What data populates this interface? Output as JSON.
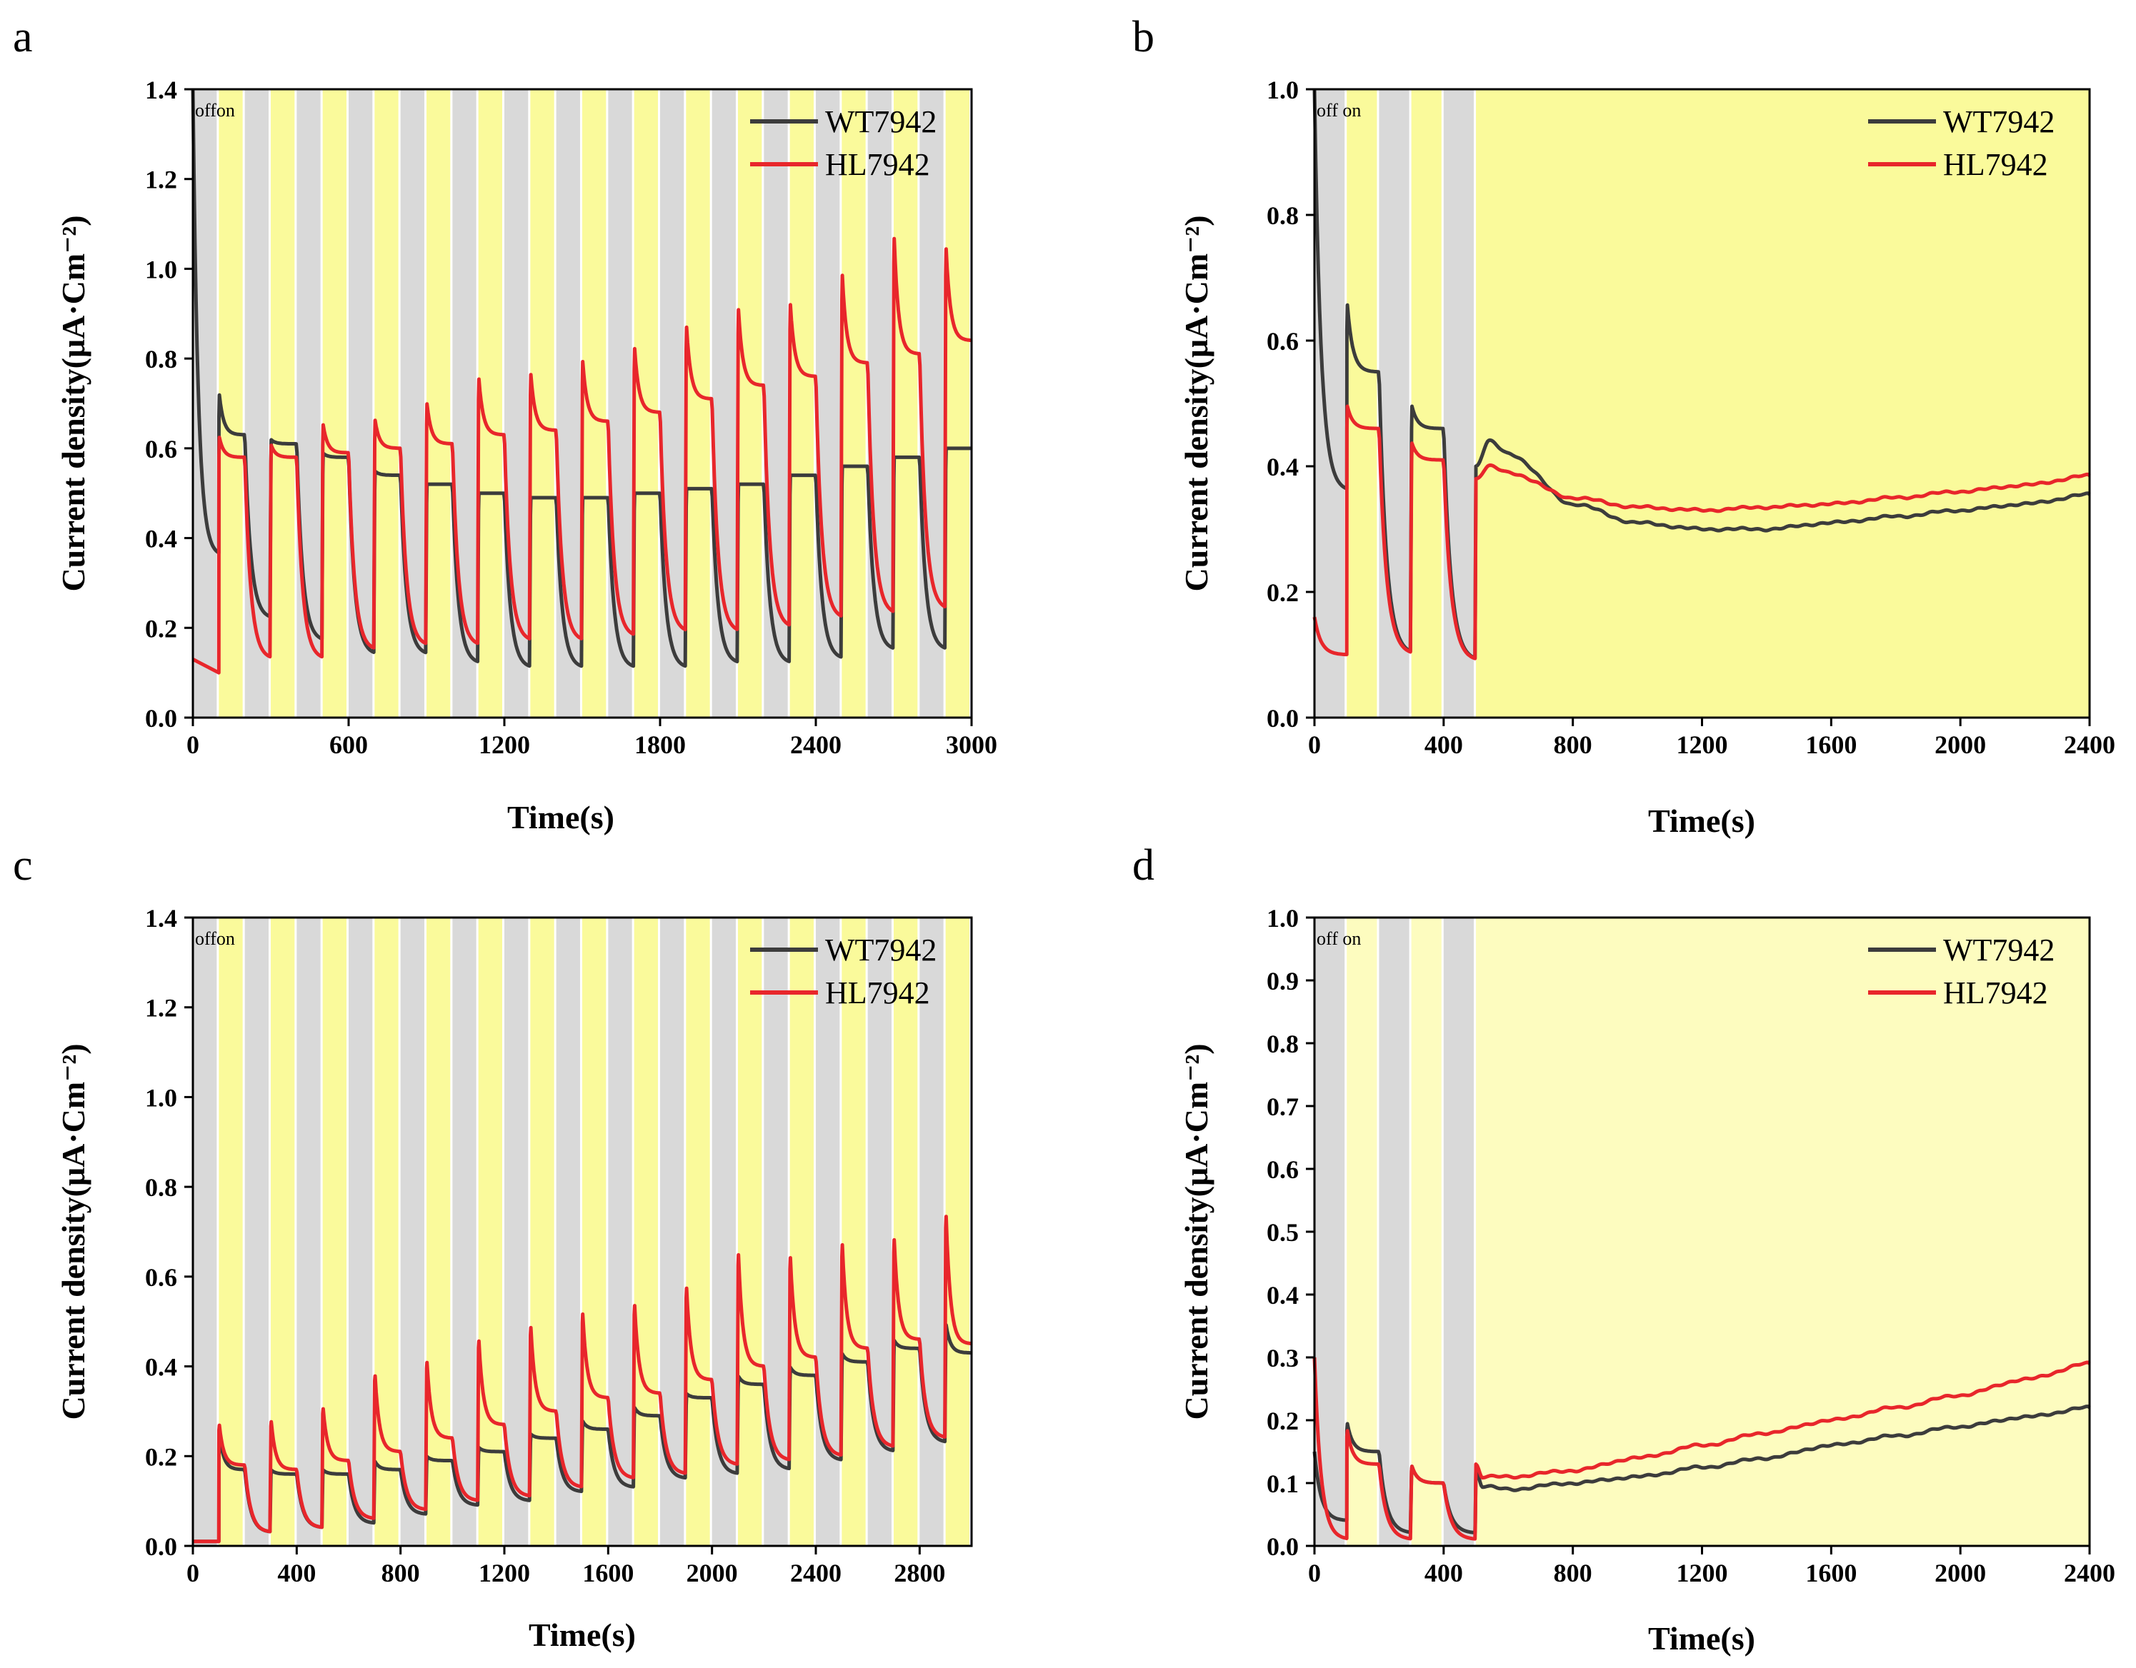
{
  "figure": {
    "legend": [
      {
        "name": "WT7942",
        "color": "#3c3c3c"
      },
      {
        "name": "HL7942",
        "color": "#e8262b"
      }
    ],
    "colors": {
      "dark_band": "#d9d9d9",
      "light_band": "#fafa9b",
      "light_band_pale": "#fdfcbf",
      "wt": "#3c3c3c",
      "hl": "#e8262b"
    }
  },
  "chart_data": [
    {
      "panel": "a",
      "type": "line",
      "xlabel": "Time(s)",
      "ylabel": "Current density(μA·Cm⁻²)",
      "xlim": [
        0,
        3000
      ],
      "ylim": [
        0,
        1.4
      ],
      "xticks": [
        "0",
        "600",
        "1200",
        "1800",
        "2400",
        "3000"
      ],
      "yticks": [
        "0.0",
        "0.2",
        "0.4",
        "0.6",
        "0.8",
        "1.0",
        "1.2",
        "1.4"
      ],
      "annotation": [
        "off",
        "on"
      ],
      "light_pattern": {
        "period": 200,
        "off": 100,
        "on_start": 100,
        "sustained_from": null
      },
      "series": [
        {
          "name": "WT7942",
          "initial": 1.4,
          "cycles": [
            {
              "peak": 0.73,
              "end_on": 0.63,
              "end_off": 0.22
            },
            {
              "peak": 0.62,
              "end_on": 0.61,
              "end_off": 0.17
            },
            {
              "peak": 0.59,
              "end_on": 0.58,
              "end_off": 0.14
            },
            {
              "peak": 0.55,
              "end_on": 0.54,
              "end_off": 0.14
            },
            {
              "peak": 0.52,
              "end_on": 0.52,
              "end_off": 0.12
            },
            {
              "peak": 0.5,
              "end_on": 0.5,
              "end_off": 0.11
            },
            {
              "peak": 0.49,
              "end_on": 0.49,
              "end_off": 0.11
            },
            {
              "peak": 0.49,
              "end_on": 0.49,
              "end_off": 0.11
            },
            {
              "peak": 0.5,
              "end_on": 0.5,
              "end_off": 0.11
            },
            {
              "peak": 0.51,
              "end_on": 0.51,
              "end_off": 0.12
            },
            {
              "peak": 0.52,
              "end_on": 0.52,
              "end_off": 0.12
            },
            {
              "peak": 0.54,
              "end_on": 0.54,
              "end_off": 0.13
            },
            {
              "peak": 0.56,
              "end_on": 0.56,
              "end_off": 0.15
            },
            {
              "peak": 0.58,
              "end_on": 0.58,
              "end_off": 0.15
            },
            {
              "peak": 0.6,
              "end_on": 0.6,
              "end_off": 0.15
            }
          ]
        },
        {
          "name": "HL7942",
          "initial": 0.13,
          "first_off_end": 0.1,
          "cycles": [
            {
              "peak": 0.63,
              "end_on": 0.58,
              "end_off": 0.13
            },
            {
              "peak": 0.61,
              "end_on": 0.58,
              "end_off": 0.13
            },
            {
              "peak": 0.66,
              "end_on": 0.59,
              "end_off": 0.15
            },
            {
              "peak": 0.67,
              "end_on": 0.6,
              "end_off": 0.16
            },
            {
              "peak": 0.71,
              "end_on": 0.61,
              "end_off": 0.16
            },
            {
              "peak": 0.77,
              "end_on": 0.63,
              "end_off": 0.17
            },
            {
              "peak": 0.78,
              "end_on": 0.64,
              "end_off": 0.17
            },
            {
              "peak": 0.81,
              "end_on": 0.66,
              "end_off": 0.18
            },
            {
              "peak": 0.84,
              "end_on": 0.68,
              "end_off": 0.19
            },
            {
              "peak": 0.89,
              "end_on": 0.71,
              "end_off": 0.19
            },
            {
              "peak": 0.93,
              "end_on": 0.74,
              "end_off": 0.2
            },
            {
              "peak": 0.94,
              "end_on": 0.76,
              "end_off": 0.22
            },
            {
              "peak": 1.01,
              "end_on": 0.79,
              "end_off": 0.23
            },
            {
              "peak": 1.1,
              "end_on": 0.81,
              "end_off": 0.24
            },
            {
              "peak": 1.07,
              "end_on": 0.84,
              "end_off": 0.25
            }
          ]
        }
      ]
    },
    {
      "panel": "b",
      "type": "line",
      "xlabel": "Time(s)",
      "ylabel": "Current density(μA·Cm⁻²)",
      "xlim": [
        0,
        2400
      ],
      "ylim": [
        0,
        1.0
      ],
      "xticks": [
        "0",
        "400",
        "800",
        "1200",
        "1600",
        "2000",
        "2400"
      ],
      "yticks": [
        "0.0",
        "0.2",
        "0.4",
        "0.6",
        "0.8",
        "1.0"
      ],
      "annotation": [
        "off",
        "on"
      ],
      "light_pattern": {
        "period": 200,
        "off": 100,
        "on_start": 100,
        "sustained_from": 500
      },
      "series": [
        {
          "name": "WT7942",
          "initial": 1.0,
          "cycles": [
            {
              "peak": 0.67,
              "end_on": 0.55,
              "end_off": 0.1
            },
            {
              "peak": 0.5,
              "end_on": 0.46,
              "end_off": 0.09
            }
          ],
          "sustained": [
            [
              500,
              0.4
            ],
            [
              540,
              0.44
            ],
            [
              600,
              0.42
            ],
            [
              800,
              0.34
            ],
            [
              1000,
              0.31
            ],
            [
              1200,
              0.3
            ],
            [
              1400,
              0.3
            ],
            [
              1600,
              0.31
            ],
            [
              1800,
              0.32
            ],
            [
              2000,
              0.33
            ],
            [
              2200,
              0.34
            ],
            [
              2400,
              0.355
            ]
          ]
        },
        {
          "name": "HL7942",
          "initial": 0.16,
          "first_off_end": 0.1,
          "cycles": [
            {
              "peak": 0.5,
              "end_on": 0.46,
              "end_off": 0.1
            },
            {
              "peak": 0.44,
              "end_on": 0.41,
              "end_off": 0.09
            }
          ],
          "sustained": [
            [
              500,
              0.38
            ],
            [
              540,
              0.4
            ],
            [
              600,
              0.39
            ],
            [
              800,
              0.35
            ],
            [
              1000,
              0.335
            ],
            [
              1200,
              0.33
            ],
            [
              1400,
              0.335
            ],
            [
              1600,
              0.34
            ],
            [
              1800,
              0.35
            ],
            [
              2000,
              0.36
            ],
            [
              2200,
              0.37
            ],
            [
              2400,
              0.385
            ]
          ]
        }
      ]
    },
    {
      "panel": "c",
      "type": "line",
      "xlabel": "Time(s)",
      "ylabel": "Current density(μA·Cm⁻²)",
      "xlim": [
        0,
        3000
      ],
      "ylim": [
        0,
        1.4
      ],
      "xticks": [
        "0",
        "400",
        "800",
        "1200",
        "1600",
        "2000",
        "2400",
        "2800"
      ],
      "yticks": [
        "0.0",
        "0.2",
        "0.4",
        "0.6",
        "0.8",
        "1.0",
        "1.2",
        "1.4"
      ],
      "annotation": [
        "off",
        "on"
      ],
      "light_pattern": {
        "period": 200,
        "off": 100,
        "on_start": 100,
        "sustained_from": null
      },
      "series": [
        {
          "name": "WT7942",
          "initial": 0.01,
          "first_off_end": 0.01,
          "cycles": [
            {
              "peak": 0.26,
              "end_on": 0.17,
              "end_off": 0.03
            },
            {
              "peak": 0.17,
              "end_on": 0.16,
              "end_off": 0.04
            },
            {
              "peak": 0.17,
              "end_on": 0.16,
              "end_off": 0.05
            },
            {
              "peak": 0.19,
              "end_on": 0.17,
              "end_off": 0.07
            },
            {
              "peak": 0.2,
              "end_on": 0.19,
              "end_off": 0.09
            },
            {
              "peak": 0.22,
              "end_on": 0.21,
              "end_off": 0.1
            },
            {
              "peak": 0.25,
              "end_on": 0.24,
              "end_off": 0.12
            },
            {
              "peak": 0.28,
              "end_on": 0.26,
              "end_off": 0.13
            },
            {
              "peak": 0.31,
              "end_on": 0.29,
              "end_off": 0.15
            },
            {
              "peak": 0.34,
              "end_on": 0.33,
              "end_off": 0.16
            },
            {
              "peak": 0.38,
              "end_on": 0.36,
              "end_off": 0.17
            },
            {
              "peak": 0.4,
              "end_on": 0.38,
              "end_off": 0.19
            },
            {
              "peak": 0.43,
              "end_on": 0.41,
              "end_off": 0.21
            },
            {
              "peak": 0.46,
              "end_on": 0.44,
              "end_off": 0.23
            },
            {
              "peak": 0.5,
              "end_on": 0.43,
              "end_off": 0.24
            }
          ]
        },
        {
          "name": "HL7942",
          "initial": 0.01,
          "first_off_end": 0.01,
          "cycles": [
            {
              "peak": 0.28,
              "end_on": 0.18,
              "end_off": 0.03
            },
            {
              "peak": 0.29,
              "end_on": 0.17,
              "end_off": 0.04
            },
            {
              "peak": 0.32,
              "end_on": 0.19,
              "end_off": 0.06
            },
            {
              "peak": 0.4,
              "end_on": 0.21,
              "end_off": 0.08
            },
            {
              "peak": 0.43,
              "end_on": 0.24,
              "end_off": 0.1
            },
            {
              "peak": 0.48,
              "end_on": 0.27,
              "end_off": 0.11
            },
            {
              "peak": 0.51,
              "end_on": 0.3,
              "end_off": 0.13
            },
            {
              "peak": 0.54,
              "end_on": 0.33,
              "end_off": 0.15
            },
            {
              "peak": 0.56,
              "end_on": 0.34,
              "end_off": 0.16
            },
            {
              "peak": 0.6,
              "end_on": 0.37,
              "end_off": 0.18
            },
            {
              "peak": 0.68,
              "end_on": 0.4,
              "end_off": 0.19
            },
            {
              "peak": 0.67,
              "end_on": 0.42,
              "end_off": 0.2
            },
            {
              "peak": 0.7,
              "end_on": 0.44,
              "end_off": 0.22
            },
            {
              "peak": 0.71,
              "end_on": 0.46,
              "end_off": 0.24
            },
            {
              "peak": 0.77,
              "end_on": 0.45,
              "end_off": 0.25
            }
          ]
        }
      ]
    },
    {
      "panel": "d",
      "type": "line",
      "xlabel": "Time(s)",
      "ylabel": "Current density(μA·Cm⁻²)",
      "xlim": [
        0,
        2400
      ],
      "ylim": [
        0,
        1.0
      ],
      "xticks": [
        "0",
        "400",
        "800",
        "1200",
        "1600",
        "2000",
        "2400"
      ],
      "yticks": [
        "0.0",
        "0.1",
        "0.2",
        "0.3",
        "0.4",
        "0.5",
        "0.6",
        "0.7",
        "0.8",
        "0.9",
        "1.0"
      ],
      "annotation": [
        "off",
        "on"
      ],
      "light_pattern": {
        "period": 200,
        "off": 100,
        "on_start": 100,
        "sustained_from": 500
      },
      "series": [
        {
          "name": "WT7942",
          "initial": 0.15,
          "first_off_end": 0.04,
          "cycles": [
            {
              "peak": 0.2,
              "end_on": 0.15,
              "end_off": 0.02
            },
            {
              "peak": 0.13,
              "end_on": 0.1,
              "end_off": 0.02
            }
          ],
          "sustained": [
            [
              500,
              0.12
            ],
            [
              520,
              0.095
            ],
            [
              600,
              0.09
            ],
            [
              800,
              0.1
            ],
            [
              1000,
              0.11
            ],
            [
              1200,
              0.125
            ],
            [
              1400,
              0.14
            ],
            [
              1600,
              0.16
            ],
            [
              1800,
              0.175
            ],
            [
              2000,
              0.19
            ],
            [
              2200,
              0.205
            ],
            [
              2400,
              0.22
            ]
          ]
        },
        {
          "name": "HL7942",
          "initial": 0.3,
          "first_off_end": 0.01,
          "cycles": [
            {
              "peak": 0.19,
              "end_on": 0.13,
              "end_off": 0.01
            },
            {
              "peak": 0.13,
              "end_on": 0.1,
              "end_off": 0.01
            }
          ],
          "sustained": [
            [
              500,
              0.13
            ],
            [
              520,
              0.11
            ],
            [
              600,
              0.11
            ],
            [
              800,
              0.12
            ],
            [
              1000,
              0.14
            ],
            [
              1200,
              0.16
            ],
            [
              1400,
              0.18
            ],
            [
              1600,
              0.2
            ],
            [
              1800,
              0.22
            ],
            [
              2000,
              0.24
            ],
            [
              2200,
              0.265
            ],
            [
              2400,
              0.29
            ]
          ]
        }
      ]
    }
  ]
}
